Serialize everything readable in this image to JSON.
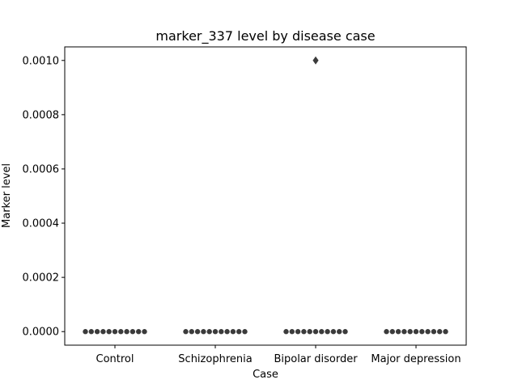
{
  "chart_data": {
    "type": "scatter",
    "subtype": "swarm",
    "title": "marker_337 level by disease case",
    "xlabel": "Case",
    "ylabel": "Marker level",
    "categories": [
      "Control",
      "Schizophrenia",
      "Bipolar disorder",
      "Major depression"
    ],
    "ylim": [
      -5e-05,
      0.00105
    ],
    "yticks": [
      0.0,
      0.0002,
      0.0004,
      0.0006,
      0.0008,
      0.001
    ],
    "ytick_labels": [
      "0.0000",
      "0.0002",
      "0.0004",
      "0.0006",
      "0.0008",
      "0.0010"
    ],
    "point_color": "#3b3b3b",
    "grid": false,
    "legend": "none",
    "groups": [
      {
        "category": "Control",
        "values": [
          0,
          0,
          0,
          0,
          0,
          0,
          0,
          0,
          0,
          0,
          0
        ]
      },
      {
        "category": "Schizophrenia",
        "values": [
          0,
          0,
          0,
          0,
          0,
          0,
          0,
          0,
          0,
          0,
          0
        ]
      },
      {
        "category": "Bipolar disorder",
        "values": [
          0,
          0,
          0,
          0,
          0,
          0,
          0,
          0,
          0,
          0,
          0
        ]
      },
      {
        "category": "Major depression",
        "values": [
          0,
          0,
          0,
          0,
          0,
          0,
          0,
          0,
          0,
          0,
          0
        ]
      }
    ],
    "outliers": [
      {
        "category": "Bipolar disorder",
        "value": 0.001,
        "marker": "diamond"
      }
    ]
  }
}
